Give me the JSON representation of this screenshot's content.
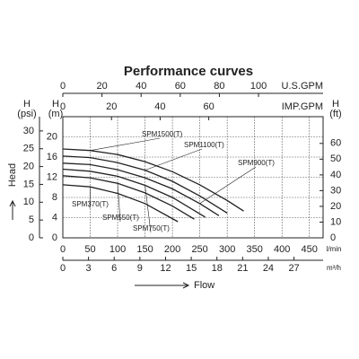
{
  "chart_data": {
    "type": "line",
    "title": "Performance curves",
    "xlabel": "l/min",
    "xlim": [
      0,
      475
    ],
    "xticks": [
      0,
      50,
      100,
      150,
      200,
      250,
      300,
      350,
      400,
      450
    ],
    "ylabel": "H",
    "yunit": "(m)",
    "ylim": [
      0,
      24
    ],
    "yticks": [
      0,
      4,
      8,
      12,
      16,
      20
    ],
    "grid": true,
    "color": "#222222",
    "extra_x_axes": [
      {
        "position": "bottom",
        "label": "m³/h",
        "lim": [
          0,
          30.4
        ],
        "ticks": [
          0,
          3,
          6,
          9,
          12,
          15,
          18,
          21,
          24,
          27
        ]
      },
      {
        "position": "top",
        "label": "U.S.GPM",
        "lim": [
          0,
          133
        ],
        "ticks": [
          0,
          20,
          40,
          60,
          80,
          100
        ]
      },
      {
        "position": "top-inner",
        "label": "IMP.GPM",
        "lim": [
          0,
          107
        ],
        "ticks": [
          0,
          20,
          40,
          60
        ]
      }
    ],
    "extra_y_axes": [
      {
        "position": "left",
        "label": "H",
        "unit": "(psi)",
        "lim": [
          0,
          34
        ],
        "ticks": [
          0,
          5,
          10,
          15,
          20,
          25,
          30
        ]
      },
      {
        "position": "right",
        "label": "H",
        "unit": "(ft)",
        "lim": [
          0,
          77
        ],
        "ticks": [
          0,
          10,
          20,
          30,
          40,
          50,
          60
        ]
      }
    ],
    "head_label": "Head",
    "flow_label": "Flow",
    "series": [
      {
        "name": "SPM1500(T)",
        "x": [
          0,
          50,
          100,
          150,
          200,
          250,
          300,
          330
        ],
        "values": [
          17.6,
          17.3,
          16.5,
          15.1,
          13.1,
          10.5,
          7.4,
          5.3
        ]
      },
      {
        "name": "SPM1100(T)",
        "x": [
          0,
          50,
          100,
          150,
          200,
          250,
          300
        ],
        "values": [
          16.2,
          15.9,
          14.9,
          13.4,
          11.2,
          8.3,
          4.9
        ]
      },
      {
        "name": "SPM900(T)",
        "x": [
          0,
          50,
          100,
          150,
          200,
          250,
          285
        ],
        "values": [
          14.8,
          14.5,
          13.5,
          11.9,
          9.7,
          6.8,
          4.4
        ]
      },
      {
        "name": "SPM370(T)",
        "x": [
          0,
          50,
          100,
          150,
          210
        ],
        "values": [
          10.5,
          10.1,
          8.8,
          6.8,
          3.2
        ]
      },
      {
        "name": "SPM550(T)",
        "x": [
          0,
          50,
          100,
          150,
          200,
          240
        ],
        "values": [
          12.3,
          11.9,
          10.8,
          8.9,
          6.3,
          3.7
        ]
      },
      {
        "name": "SPM750(T)",
        "x": [
          0,
          50,
          100,
          150,
          200,
          260
        ],
        "values": [
          13.6,
          13.2,
          12.2,
          10.4,
          8.0,
          4.1
        ]
      }
    ]
  }
}
